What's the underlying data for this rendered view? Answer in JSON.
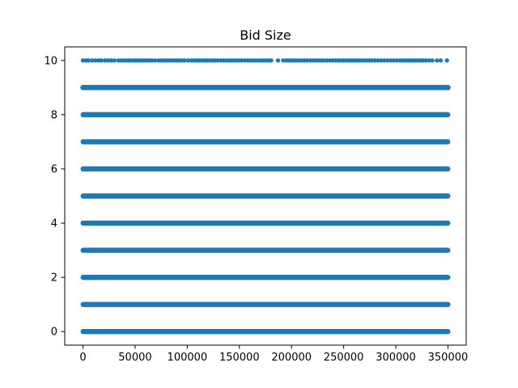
{
  "chart_data": {
    "type": "scatter",
    "title": "Bid Size",
    "xlabel": "",
    "ylabel": "",
    "xlim": [
      -17500,
      367500
    ],
    "ylim": [
      -0.5,
      10.5
    ],
    "grid": false,
    "legend": "none",
    "color": "#1f77b4",
    "x_ticks": [
      0,
      50000,
      100000,
      150000,
      200000,
      250000,
      300000,
      350000
    ],
    "x_tick_labels": [
      "0",
      "50000",
      "100000",
      "150000",
      "200000",
      "250000",
      "300000",
      "350000"
    ],
    "y_ticks": [
      0,
      2,
      4,
      6,
      8,
      10
    ],
    "y_tick_labels": [
      "0",
      "2",
      "4",
      "6",
      "8",
      "10"
    ],
    "series": [
      {
        "y": 0,
        "x_min": 0,
        "x_max": 350000,
        "density": "continuous"
      },
      {
        "y": 1,
        "x_min": 0,
        "x_max": 350000,
        "density": "continuous"
      },
      {
        "y": 2,
        "x_min": 0,
        "x_max": 350000,
        "density": "continuous"
      },
      {
        "y": 3,
        "x_min": 0,
        "x_max": 350000,
        "density": "continuous"
      },
      {
        "y": 4,
        "x_min": 0,
        "x_max": 350000,
        "density": "continuous"
      },
      {
        "y": 5,
        "x_min": 0,
        "x_max": 350000,
        "density": "continuous"
      },
      {
        "y": 6,
        "x_min": 0,
        "x_max": 350000,
        "density": "continuous"
      },
      {
        "y": 7,
        "x_min": 0,
        "x_max": 350000,
        "density": "continuous"
      },
      {
        "y": 8,
        "x_min": 0,
        "x_max": 350000,
        "density": "continuous"
      },
      {
        "y": 9,
        "x_min": 0,
        "x_max": 350000,
        "density": "dense"
      },
      {
        "y": 10,
        "x_min": 0,
        "x_max": 350000,
        "density": "sparse",
        "x": [
          0,
          3000,
          5500,
          9000,
          12000,
          15000,
          17500,
          21000,
          24000,
          27000,
          30000,
          34000,
          36500,
          39000,
          41500,
          44000,
          46500,
          49000,
          51000,
          53500,
          56000,
          58500,
          61000,
          63500,
          66000,
          69000,
          72500,
          75000,
          77500,
          80000,
          82500,
          85000,
          87500,
          90000,
          92500,
          95000,
          97500,
          101000,
          104000,
          106500,
          109000,
          111500,
          114000,
          116500,
          119000,
          121500,
          124000,
          126500,
          129000,
          132000,
          134500,
          137000,
          139500,
          142000,
          144500,
          147000,
          149500,
          152000,
          155000,
          158000,
          160500,
          163000,
          165500,
          168000,
          170500,
          173000,
          175500,
          178000,
          180500,
          187000,
          192000,
          195000,
          197500,
          200000,
          202500,
          205000,
          207500,
          210000,
          212500,
          215000,
          218000,
          221000,
          223500,
          226000,
          228500,
          231000,
          234000,
          237000,
          239500,
          242000,
          244500,
          247000,
          249500,
          252000,
          254500,
          257000,
          259500,
          262000,
          264500,
          267000,
          269500,
          272000,
          274500,
          277000,
          280000,
          283000,
          286000,
          289000,
          292000,
          295000,
          298000,
          301000,
          304000,
          306500,
          309000,
          311500,
          314000,
          316500,
          319000,
          321500,
          324000,
          326500,
          329000,
          332000,
          335000,
          339500,
          343000,
          349000
        ]
      }
    ]
  }
}
